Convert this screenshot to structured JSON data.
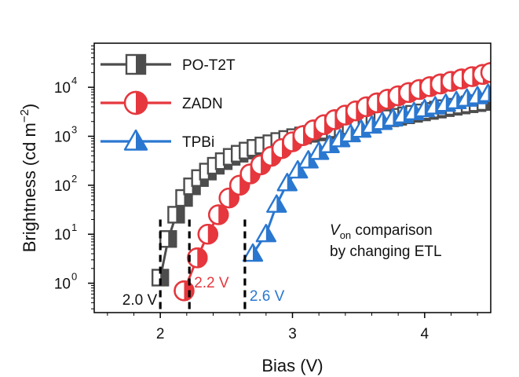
{
  "chart_data": {
    "type": "scatter",
    "xlabel": "Bias (V)",
    "ylabel": "Brightness (cd m−2)",
    "ylabel_parts": {
      "main": "Brightness (cd m",
      "sup": "−2",
      "close": ")"
    },
    "xlim": [
      1.5,
      4.5
    ],
    "ylim_log10": [
      -0.6,
      4.9
    ],
    "yscale": "log",
    "x_ticks": [
      2,
      3,
      4
    ],
    "x_tick_labels": [
      "2",
      "3",
      "4"
    ],
    "y_ticks": [
      1,
      10,
      100,
      1000,
      10000
    ],
    "y_tick_labels": [
      {
        "base": "10",
        "exp": "0"
      },
      {
        "base": "10",
        "exp": "1"
      },
      {
        "base": "10",
        "exp": "2"
      },
      {
        "base": "10",
        "exp": "3"
      },
      {
        "base": "10",
        "exp": "4"
      }
    ],
    "legend_position": "top-left",
    "series": [
      {
        "name": "PO-T2T",
        "marker": "half-filled-square",
        "color": "#4d4d4d",
        "x": [
          2.0,
          2.06,
          2.12,
          2.18,
          2.24,
          2.3,
          2.36,
          2.42,
          2.48,
          2.54,
          2.6,
          2.66,
          2.72,
          2.78,
          2.84,
          2.9,
          2.96,
          3.02,
          3.08,
          3.14,
          3.2,
          3.26,
          3.32,
          3.38,
          3.44,
          3.5,
          3.56,
          3.62,
          3.68,
          3.74,
          3.8,
          3.86,
          3.92,
          3.98,
          4.04,
          4.1,
          4.16,
          4.22,
          4.28,
          4.34,
          4.4,
          4.46
        ],
        "y": [
          1.3,
          8,
          25,
          55,
          95,
          140,
          190,
          250,
          310,
          380,
          440,
          510,
          580,
          650,
          720,
          800,
          880,
          960,
          1040,
          1120,
          1200,
          1300,
          1400,
          1500,
          1620,
          1750,
          1880,
          2020,
          2170,
          2330,
          2500,
          2680,
          2870,
          3070,
          3290,
          3500,
          3750,
          4000,
          4250,
          4500,
          4750,
          5000
        ]
      },
      {
        "name": "ZADN",
        "marker": "half-filled-circle",
        "color": "#e5373d",
        "x": [
          2.18,
          2.28,
          2.36,
          2.44,
          2.52,
          2.6,
          2.68,
          2.76,
          2.84,
          2.92,
          3.0,
          3.08,
          3.16,
          3.24,
          3.32,
          3.4,
          3.48,
          3.56,
          3.64,
          3.72,
          3.8,
          3.88,
          3.96,
          4.04,
          4.12,
          4.2,
          4.28,
          4.36,
          4.44,
          4.5
        ],
        "y": [
          0.7,
          3.3,
          10,
          25,
          55,
          100,
          170,
          260,
          390,
          560,
          770,
          1030,
          1350,
          1730,
          2180,
          2700,
          3300,
          4000,
          4800,
          5700,
          6700,
          7800,
          9000,
          10300,
          11700,
          13200,
          14800,
          16500,
          18300,
          20000
        ]
      },
      {
        "name": "TPBi",
        "marker": "half-filled-triangle",
        "color": "#2a77d0",
        "x": [
          2.7,
          2.8,
          2.88,
          2.96,
          3.04,
          3.12,
          3.2,
          3.28,
          3.36,
          3.44,
          3.52,
          3.6,
          3.68,
          3.76,
          3.84,
          3.92,
          4.0,
          4.08,
          4.16,
          4.24,
          4.32,
          4.4,
          4.48
        ],
        "y": [
          4,
          10,
          40,
          110,
          200,
          320,
          480,
          660,
          870,
          1100,
          1360,
          1650,
          1960,
          2300,
          2680,
          3100,
          3560,
          4060,
          4600,
          5200,
          5850,
          6550,
          7300
        ]
      }
    ],
    "turn_on_markers": [
      {
        "x": 2.0,
        "label": "2.0 V",
        "color": "#111111",
        "label_side": "left"
      },
      {
        "x": 2.22,
        "label": "2.2 V",
        "color": "#e5373d",
        "label_side": "right"
      },
      {
        "x": 2.64,
        "label": "2.6 V",
        "color": "#2a77d0",
        "label_side": "right"
      }
    ],
    "annotation": {
      "line1_symbol": "V",
      "line1_subscript": "on",
      "line1_rest": " comparison",
      "line2": "by changing ETL"
    }
  }
}
